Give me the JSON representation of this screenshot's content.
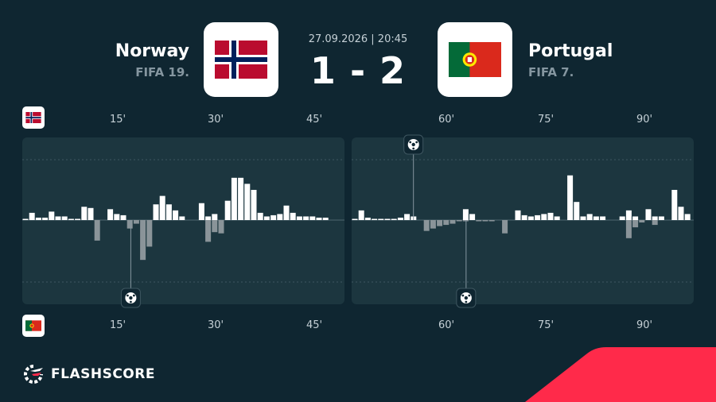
{
  "match": {
    "datetime": "27.09.2026 | 20:45",
    "score": "1 - 2",
    "home": {
      "name": "Norway",
      "rank": "FIFA 19.",
      "flag": "norway-flag"
    },
    "away": {
      "name": "Portugal",
      "rank": "FIFA 7.",
      "flag": "portugal-flag"
    }
  },
  "ticks": {
    "top": [
      "15'",
      "30'",
      "45'",
      "60'",
      "75'",
      "90'"
    ],
    "bottom": [
      "15'",
      "30'",
      "45'",
      "60'",
      "75'",
      "90'"
    ]
  },
  "brand": {
    "name": "FLASHSCORE"
  },
  "colors": {
    "background": "#0f2631",
    "panel": "#1c363f",
    "bar_home": "#ffffff",
    "bar_away": "#8a9499",
    "accent": "#ff2a4a"
  },
  "chart_data": {
    "type": "bar",
    "series": [
      {
        "name": "Norway",
        "first_half": [
          1,
          6,
          2,
          2,
          7,
          3,
          3,
          1,
          1,
          11,
          10,
          0,
          0,
          9,
          5,
          4,
          0,
          0,
          0,
          0,
          13,
          20,
          13,
          8,
          3,
          0,
          0,
          14,
          3,
          5,
          0,
          16,
          35,
          35,
          30,
          25,
          6,
          3,
          4,
          5,
          12,
          6,
          3,
          3,
          3,
          2,
          2,
          0
        ],
        "second_half": [
          1,
          8,
          2,
          1,
          1,
          1,
          1,
          2,
          5,
          3,
          0,
          0,
          0,
          0,
          0,
          0,
          0,
          9,
          5,
          0,
          0,
          0,
          0,
          0,
          0,
          8,
          4,
          3,
          4,
          5,
          6,
          3,
          0,
          37,
          15,
          3,
          5,
          3,
          3,
          0,
          0,
          3,
          8,
          3,
          0,
          9,
          3,
          3,
          0,
          25,
          11,
          5
        ]
      },
      {
        "name": "Portugal",
        "first_half": [
          0,
          0,
          0,
          0,
          0,
          0,
          0,
          0,
          0,
          0,
          0,
          17,
          0,
          0,
          0,
          0,
          7,
          3,
          33,
          22,
          0,
          0,
          0,
          0,
          0,
          0,
          0,
          0,
          18,
          10,
          11,
          0,
          0,
          0,
          0,
          0,
          0,
          0,
          0,
          0,
          0,
          0,
          0,
          0,
          0,
          0,
          0,
          0
        ],
        "second_half": [
          0,
          0,
          0,
          0,
          0,
          0,
          0,
          0,
          0,
          0,
          0,
          9,
          7,
          5,
          4,
          3,
          1,
          1,
          0,
          1,
          1,
          1,
          0,
          11,
          0,
          0,
          0,
          0,
          0,
          0,
          0,
          0,
          0,
          0,
          0,
          0,
          0,
          0,
          0,
          0,
          0,
          0,
          15,
          6,
          2,
          0,
          4,
          0,
          0,
          0,
          0,
          0
        ]
      }
    ],
    "goals": {
      "home_minutes": [
        55
      ],
      "away_minutes": [
        17,
        63
      ]
    },
    "x_ticks": [
      15,
      30,
      45,
      60,
      75,
      90
    ],
    "ylim": [
      -50,
      50
    ],
    "grid": true
  }
}
